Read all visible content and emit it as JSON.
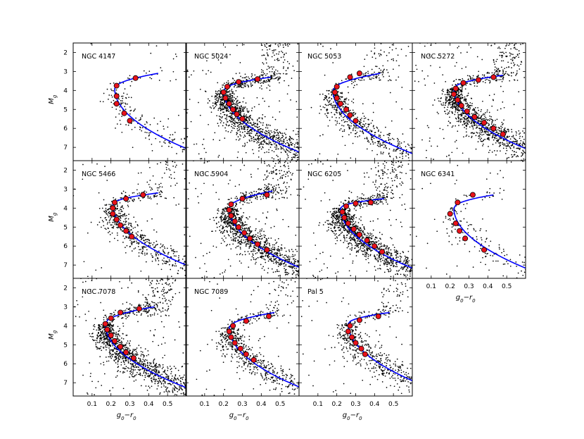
{
  "chart_data": {
    "type": "scatter",
    "layout": {
      "rows": 3,
      "cols": 4
    },
    "shared_axes": {
      "xlim": [
        0.0,
        0.6
      ],
      "ylim": [
        7.7,
        1.5
      ],
      "y_inverted": true,
      "xticks": [
        0.1,
        0.2,
        0.3,
        0.4,
        0.5
      ],
      "xtick_labels": [
        "0.1",
        "0.2",
        "0.3",
        "0.4",
        "0.5"
      ],
      "yticks": [
        2,
        3,
        4,
        5,
        6,
        7
      ],
      "ytick_labels": [
        "2",
        "3",
        "4",
        "5",
        "6",
        "7"
      ],
      "xlabel": "g0−r0",
      "ylabel": "Mg"
    },
    "colors": {
      "stars": "#000000",
      "isochrone": "#0000ff",
      "ridge_points": "#e8131b",
      "ridge_edge": "#000000"
    },
    "panels": [
      {
        "title": "NGC 4147",
        "density": "sparse",
        "turnoff_color": 0.22,
        "turnoff_mag": 3.9,
        "branch_end_color": 0.45,
        "branch_end_mag": 3.1,
        "ridge_points": [
          [
            0.33,
            3.35
          ],
          [
            0.23,
            3.75
          ],
          [
            0.23,
            4.3
          ],
          [
            0.23,
            4.7
          ],
          [
            0.27,
            5.2
          ],
          [
            0.3,
            5.6
          ]
        ]
      },
      {
        "title": "NGC 5024",
        "density": "dense",
        "turnoff_color": 0.2,
        "turnoff_mag": 4.0,
        "branch_end_color": 0.45,
        "branch_end_mag": 3.3,
        "ridge_points": [
          [
            0.38,
            3.4
          ],
          [
            0.28,
            3.55
          ],
          [
            0.22,
            3.8
          ],
          [
            0.2,
            4.1
          ],
          [
            0.21,
            4.4
          ],
          [
            0.23,
            4.7
          ],
          [
            0.25,
            5.0
          ],
          [
            0.27,
            5.25
          ],
          [
            0.3,
            5.5
          ]
        ]
      },
      {
        "title": "NGC 5053",
        "density": "medium",
        "turnoff_color": 0.18,
        "turnoff_mag": 4.0,
        "branch_end_color": 0.43,
        "branch_end_mag": 3.1,
        "ridge_points": [
          [
            0.32,
            3.1
          ],
          [
            0.27,
            3.3
          ],
          [
            0.2,
            3.8
          ],
          [
            0.19,
            4.1
          ],
          [
            0.2,
            4.4
          ],
          [
            0.22,
            4.7
          ],
          [
            0.25,
            5.0
          ],
          [
            0.27,
            5.3
          ],
          [
            0.3,
            5.6
          ]
        ]
      },
      {
        "title": "NGC 5272",
        "density": "dense",
        "turnoff_color": 0.22,
        "turnoff_mag": 3.9,
        "branch_end_color": 0.48,
        "branch_end_mag": 3.2,
        "ridge_points": [
          [
            0.43,
            3.3
          ],
          [
            0.35,
            3.45
          ],
          [
            0.27,
            3.6
          ],
          [
            0.23,
            3.9
          ],
          [
            0.22,
            4.2
          ],
          [
            0.24,
            4.5
          ],
          [
            0.26,
            4.8
          ],
          [
            0.29,
            5.1
          ],
          [
            0.33,
            5.4
          ],
          [
            0.38,
            5.7
          ],
          [
            0.43,
            6.0
          ],
          [
            0.48,
            6.3
          ]
        ]
      },
      {
        "title": "NGC 5466",
        "density": "medium",
        "turnoff_color": 0.21,
        "turnoff_mag": 3.8,
        "branch_end_color": 0.45,
        "branch_end_mag": 3.2,
        "ridge_points": [
          [
            0.37,
            3.3
          ],
          [
            0.28,
            3.5
          ],
          [
            0.22,
            3.7
          ],
          [
            0.21,
            4.0
          ],
          [
            0.21,
            4.3
          ],
          [
            0.23,
            4.6
          ],
          [
            0.25,
            4.9
          ],
          [
            0.28,
            5.2
          ],
          [
            0.31,
            5.5
          ]
        ]
      },
      {
        "title": "NGC 5904",
        "density": "dense",
        "turnoff_color": 0.23,
        "turnoff_mag": 4.0,
        "branch_end_color": 0.46,
        "branch_end_mag": 3.1,
        "ridge_points": [
          [
            0.43,
            3.3
          ],
          [
            0.3,
            3.5
          ],
          [
            0.24,
            3.8
          ],
          [
            0.23,
            4.1
          ],
          [
            0.24,
            4.4
          ],
          [
            0.26,
            4.7
          ],
          [
            0.28,
            5.0
          ],
          [
            0.31,
            5.3
          ],
          [
            0.34,
            5.6
          ],
          [
            0.38,
            5.9
          ],
          [
            0.43,
            6.2
          ]
        ]
      },
      {
        "title": "NGC 6205",
        "density": "dense",
        "turnoff_color": 0.22,
        "turnoff_mag": 4.0,
        "branch_end_color": 0.45,
        "branch_end_mag": 3.5,
        "ridge_points": [
          [
            0.38,
            3.7
          ],
          [
            0.3,
            3.75
          ],
          [
            0.25,
            3.9
          ],
          [
            0.23,
            4.2
          ],
          [
            0.24,
            4.5
          ],
          [
            0.26,
            4.8
          ],
          [
            0.29,
            5.1
          ],
          [
            0.32,
            5.4
          ],
          [
            0.36,
            5.7
          ],
          [
            0.4,
            6.0
          ],
          [
            0.44,
            6.3
          ]
        ]
      },
      {
        "title": "NGC 6341",
        "density": "sparse",
        "turnoff_color": 0.22,
        "turnoff_mag": 4.0,
        "branch_end_color": 0.43,
        "branch_end_mag": 3.3,
        "ridge_points": [
          [
            0.32,
            3.3
          ],
          [
            0.24,
            3.7
          ],
          [
            0.2,
            4.3
          ],
          [
            0.23,
            4.8
          ],
          [
            0.25,
            5.2
          ],
          [
            0.28,
            5.6
          ],
          [
            0.38,
            6.2
          ]
        ]
      },
      {
        "title": "NGC 7078",
        "density": "dense",
        "turnoff_color": 0.17,
        "turnoff_mag": 3.9,
        "branch_end_color": 0.43,
        "branch_end_mag": 3.0,
        "ridge_points": [
          [
            0.35,
            3.1
          ],
          [
            0.25,
            3.3
          ],
          [
            0.2,
            3.6
          ],
          [
            0.17,
            3.9
          ],
          [
            0.18,
            4.2
          ],
          [
            0.2,
            4.5
          ],
          [
            0.22,
            4.8
          ],
          [
            0.25,
            5.1
          ],
          [
            0.28,
            5.4
          ],
          [
            0.32,
            5.7
          ]
        ]
      },
      {
        "title": "NGC 7089",
        "density": "medium",
        "turnoff_color": 0.23,
        "turnoff_mag": 4.1,
        "branch_end_color": 0.47,
        "branch_end_mag": 3.3,
        "ridge_points": [
          [
            0.44,
            3.5
          ],
          [
            0.32,
            3.75
          ],
          [
            0.25,
            4.0
          ],
          [
            0.23,
            4.3
          ],
          [
            0.24,
            4.6
          ],
          [
            0.26,
            4.9
          ],
          [
            0.29,
            5.2
          ],
          [
            0.32,
            5.5
          ],
          [
            0.36,
            5.8
          ]
        ]
      },
      {
        "title": "Pal 5",
        "density": "medium",
        "turnoff_color": 0.26,
        "turnoff_mag": 3.9,
        "branch_end_color": 0.48,
        "branch_end_mag": 3.3,
        "ridge_points": [
          [
            0.42,
            3.5
          ],
          [
            0.32,
            3.7
          ],
          [
            0.27,
            4.0
          ],
          [
            0.26,
            4.3
          ],
          [
            0.28,
            4.6
          ],
          [
            0.3,
            4.9
          ],
          [
            0.33,
            5.2
          ],
          [
            0.35,
            5.5
          ]
        ]
      }
    ]
  }
}
